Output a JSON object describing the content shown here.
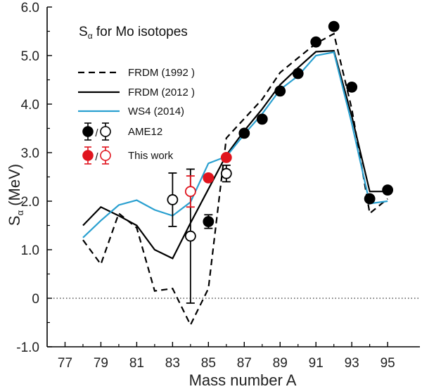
{
  "chart_data": {
    "type": "line",
    "title_main": "S",
    "title_sub": "α",
    "title_rest": " for Mo isotopes",
    "xlabel": "Mass number A",
    "ylabel_main": "S",
    "ylabel_sub": "α",
    "ylabel_rest": " (MeV)",
    "xlim": [
      76,
      96.8
    ],
    "ylim": [
      -1.0,
      6.0
    ],
    "x_ticks": [
      77,
      79,
      81,
      83,
      85,
      87,
      89,
      91,
      93,
      95
    ],
    "x_tick_labels": [
      "77",
      "79",
      "81",
      "83",
      "85",
      "87",
      "89",
      "91",
      "93",
      "95"
    ],
    "y_ticks": [
      -1.0,
      0,
      1.0,
      2.0,
      3.0,
      4.0,
      5.0,
      6.0
    ],
    "y_tick_labels": [
      "-1.0",
      "0",
      "1.0",
      "2.0",
      "3.0",
      "4.0",
      "5.0",
      "6.0"
    ],
    "zero_line": true,
    "colors": {
      "black": "#000000",
      "blue": "#2aa0d0",
      "red": "#e0141e"
    },
    "series": [
      {
        "name": "FRDM (1992 )",
        "style": "dashed",
        "color": "#000000",
        "x": [
          78,
          79,
          80,
          81,
          82,
          83,
          84,
          85,
          86,
          87,
          88,
          89,
          90,
          91,
          92,
          93,
          94,
          95
        ],
        "y": [
          1.2,
          0.7,
          1.75,
          1.45,
          0.15,
          0.2,
          -0.55,
          0.2,
          3.3,
          3.7,
          4.1,
          4.65,
          4.95,
          5.25,
          5.45,
          3.9,
          1.75,
          2.05
        ]
      },
      {
        "name": "FRDM (2012 )",
        "style": "solid",
        "color": "#000000",
        "x": [
          78,
          79,
          80,
          81,
          82,
          83,
          84,
          85,
          86,
          87,
          88,
          89,
          90,
          91,
          92,
          93,
          94,
          95
        ],
        "y": [
          1.5,
          1.88,
          1.7,
          1.5,
          1.0,
          0.82,
          1.55,
          2.25,
          2.95,
          3.45,
          3.9,
          4.4,
          4.75,
          5.08,
          5.1,
          3.75,
          2.2,
          2.2
        ]
      },
      {
        "name": "WS4 (2014)",
        "style": "solid",
        "color": "#2aa0d0",
        "x": [
          78,
          79,
          80,
          81,
          82,
          83,
          84,
          85,
          86,
          87,
          88,
          89,
          90,
          91,
          92,
          93,
          94,
          95
        ],
        "y": [
          1.25,
          1.6,
          1.92,
          2.02,
          1.82,
          1.7,
          1.98,
          2.78,
          2.92,
          3.38,
          3.8,
          4.3,
          4.58,
          5.0,
          5.07,
          3.6,
          1.95,
          2.0
        ]
      }
    ],
    "points": [
      {
        "set": "AME12",
        "x": 83,
        "y": 2.03,
        "err": 0.55,
        "filled": false
      },
      {
        "set": "AME12",
        "x": 84,
        "y": 1.28,
        "err": 1.38,
        "filled": false
      },
      {
        "set": "AME12",
        "x": 85,
        "y": 1.58,
        "err": 0.14,
        "filled": true
      },
      {
        "set": "AME12",
        "x": 86,
        "y": 2.57,
        "err": 0.17,
        "filled": false
      },
      {
        "set": "AME12",
        "x": 87,
        "y": 3.4,
        "err": 0,
        "filled": true
      },
      {
        "set": "AME12",
        "x": 88,
        "y": 3.69,
        "err": 0,
        "filled": true
      },
      {
        "set": "AME12",
        "x": 89,
        "y": 4.27,
        "err": 0,
        "filled": true
      },
      {
        "set": "AME12",
        "x": 90,
        "y": 4.63,
        "err": 0,
        "filled": true
      },
      {
        "set": "AME12",
        "x": 91,
        "y": 5.28,
        "err": 0,
        "filled": true
      },
      {
        "set": "AME12",
        "x": 92,
        "y": 5.6,
        "err": 0,
        "filled": true
      },
      {
        "set": "AME12",
        "x": 93,
        "y": 4.35,
        "err": 0,
        "filled": true
      },
      {
        "set": "AME12",
        "x": 94,
        "y": 2.05,
        "err": 0,
        "filled": true
      },
      {
        "set": "AME12",
        "x": 95,
        "y": 2.23,
        "err": 0,
        "filled": true
      },
      {
        "set": "This work",
        "x": 84,
        "y": 2.2,
        "err": 0.32,
        "filled": false
      },
      {
        "set": "This work",
        "x": 85,
        "y": 2.48,
        "err": 0,
        "filled": true
      },
      {
        "set": "This work",
        "x": 86,
        "y": 2.9,
        "err": 0,
        "filled": true
      }
    ],
    "legend": {
      "lines": [
        {
          "label": "FRDM (1992 )",
          "color": "#000000",
          "style": "dashed"
        },
        {
          "label": "FRDM (2012 )",
          "color": "#000000",
          "style": "solid"
        },
        {
          "label": "WS4 (2014)",
          "color": "#2aa0d0",
          "style": "solid"
        }
      ],
      "markers": [
        {
          "label": "AME12",
          "color": "#000000"
        },
        {
          "label": "This work",
          "color": "#e0141e"
        }
      ],
      "position": "top-left"
    }
  }
}
